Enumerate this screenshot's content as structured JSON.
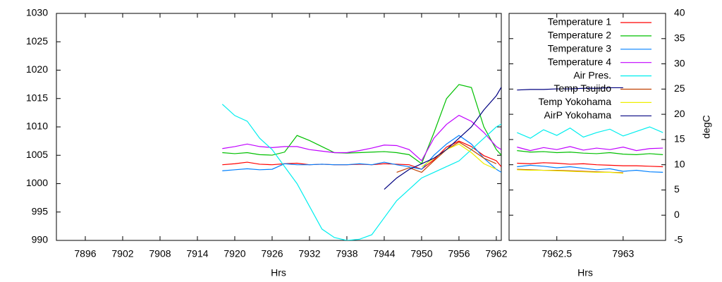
{
  "chart_data": [
    {
      "type": "line",
      "xlabel": "Hrs",
      "x": [
        7918,
        7920,
        7922,
        7924,
        7926,
        7928,
        7930,
        7932,
        7934,
        7936,
        7938,
        7940,
        7942,
        7944,
        7946,
        7948,
        7950,
        7952,
        7954,
        7956,
        7958,
        7960,
        7962,
        7962.8
      ],
      "xlim": [
        7891.36,
        7962.8
      ],
      "xticks": [
        7896,
        7902,
        7908,
        7914,
        7920,
        7926,
        7932,
        7938,
        7944,
        7950,
        7956,
        7962
      ],
      "ylim": [
        990,
        1030
      ],
      "yticks": [
        990,
        995,
        1000,
        1005,
        1010,
        1015,
        1020,
        1025,
        1030
      ],
      "y2lim": [
        -5,
        40
      ],
      "series": [
        {
          "color": "#ff0000",
          "axis": "y2",
          "values": [
            10.0,
            10.2,
            10.5,
            10.1,
            10.0,
            10.2,
            10.3,
            10.0,
            10.1,
            10.0,
            10.0,
            10.1,
            10.0,
            10.2,
            10.1,
            10.0,
            9.1,
            11.0,
            13.5,
            14.7,
            13.6,
            11.8,
            10.8,
            9.6
          ]
        },
        {
          "color": "#00c000",
          "axis": "y2",
          "values": [
            12.4,
            12.2,
            12.4,
            12.0,
            11.9,
            12.5,
            15.8,
            14.8,
            13.6,
            12.4,
            12.3,
            12.4,
            12.5,
            12.6,
            12.4,
            12.0,
            10.2,
            16.4,
            23.1,
            25.9,
            25.3,
            17.5,
            13.0,
            11.9
          ]
        },
        {
          "color": "#0080ff",
          "axis": "y2",
          "values": [
            8.8,
            9.0,
            9.2,
            9.0,
            9.1,
            10.2,
            10.0,
            10.0,
            10.1,
            10.0,
            10.0,
            10.2,
            10.0,
            10.5,
            10.0,
            9.6,
            9.1,
            11.9,
            14.1,
            15.8,
            14.1,
            11.3,
            9.1,
            8.5
          ]
        },
        {
          "color": "#c000ff",
          "axis": "y2",
          "values": [
            13.2,
            13.6,
            14.1,
            13.6,
            13.4,
            13.6,
            13.6,
            13.0,
            12.7,
            12.4,
            12.4,
            12.8,
            13.3,
            13.9,
            13.8,
            13.0,
            10.8,
            15.3,
            18.0,
            19.8,
            18.6,
            16.4,
            13.6,
            13.0
          ]
        },
        {
          "color": "#00eeee",
          "values": [
            1014,
            1012,
            1011,
            1008,
            1006,
            1003,
            1000,
            996,
            992,
            990.5,
            990,
            990.2,
            991,
            994,
            997,
            999,
            1001,
            1002,
            1003,
            1004,
            1006,
            1008,
            1010,
            1010.5
          ]
        },
        {
          "color": "#c04000",
          "axis": "y2",
          "values": [
            null,
            null,
            null,
            null,
            null,
            null,
            null,
            null,
            null,
            null,
            null,
            null,
            null,
            null,
            8.5,
            9.4,
            8.5,
            10.8,
            13,
            14.5,
            13,
            11.3,
            10.2,
            null
          ]
        },
        {
          "color": "#eeee00",
          "axis": "y2",
          "values": [
            null,
            null,
            null,
            null,
            null,
            null,
            null,
            null,
            null,
            null,
            null,
            null,
            null,
            null,
            null,
            null,
            9.6,
            11.3,
            13,
            14.1,
            12.4,
            10.2,
            9.1,
            null
          ]
        },
        {
          "color": "#000080",
          "values": [
            null,
            null,
            null,
            null,
            null,
            null,
            null,
            null,
            null,
            null,
            null,
            null,
            null,
            999,
            1001,
            1002.5,
            1003.5,
            1004.5,
            1006,
            1008,
            1010,
            1013,
            1015.5,
            1017
          ]
        }
      ]
    },
    {
      "type": "line",
      "xlabel": "Hrs",
      "y2label": "degC",
      "legend": "upper right",
      "x": [
        7962.2,
        7962.3,
        7962.4,
        7962.5,
        7962.6,
        7962.7,
        7962.8,
        7962.9,
        7963.0,
        7963.1,
        7963.2,
        7963.3
      ],
      "xlim": [
        7962.14,
        7963.32
      ],
      "xticks": [
        7962.5,
        7963
      ],
      "ylim": [
        990,
        1030
      ],
      "y2lim": [
        -5,
        40
      ],
      "y2ticks": [
        -5,
        0,
        5,
        10,
        15,
        20,
        25,
        30,
        35,
        40
      ],
      "series": [
        {
          "name": "Temperature 1",
          "color": "#ff0000",
          "axis": "y2",
          "values": [
            10.3,
            10.2,
            10.4,
            10.3,
            10.1,
            10.2,
            10.0,
            9.9,
            9.8,
            9.8,
            9.7,
            9.6
          ]
        },
        {
          "name": "Temperature 2",
          "color": "#00c000",
          "axis": "y2",
          "values": [
            12.8,
            12.5,
            12.6,
            12.4,
            12.5,
            12.3,
            12.2,
            12.4,
            12.1,
            12.0,
            12.2,
            12.0
          ]
        },
        {
          "name": "Temperature 3",
          "color": "#0080ff",
          "axis": "y2",
          "values": [
            9.6,
            9.9,
            9.7,
            9.4,
            9.6,
            9.3,
            9.0,
            9.2,
            8.7,
            8.9,
            8.6,
            8.5
          ]
        },
        {
          "name": "Temperature 4",
          "color": "#c000ff",
          "axis": "y2",
          "values": [
            13.5,
            12.8,
            13.4,
            13.0,
            13.6,
            12.9,
            13.3,
            13.0,
            13.5,
            12.8,
            13.2,
            13.3
          ]
        },
        {
          "name": "Air Pres.",
          "color": "#00eeee",
          "values": [
            1009,
            1008,
            1009.5,
            1008.5,
            1009.8,
            1008.2,
            1009,
            1009.6,
            1008.4,
            1009.2,
            1010,
            1009
          ]
        },
        {
          "name": "Temp Tsujido",
          "color": "#c04000",
          "axis": "y2",
          "values": [
            9.1,
            9.0,
            8.9,
            8.9,
            8.8,
            8.7,
            8.6,
            8.5,
            8.4,
            null,
            null,
            null
          ]
        },
        {
          "name": "Temp Yokohama",
          "color": "#eeee00",
          "axis": "y2",
          "values": [
            9.0,
            8.9,
            8.9,
            8.8,
            8.7,
            8.6,
            8.5,
            8.5,
            8.3,
            null,
            null,
            null
          ]
        },
        {
          "name": "AirP Yokohama",
          "color": "#000080",
          "values": [
            1016.5,
            1016.6,
            1016.6,
            1016.7,
            1016.7,
            1016.8,
            1016.8,
            1016.9,
            1016.9,
            null,
            null,
            null
          ]
        }
      ]
    }
  ]
}
